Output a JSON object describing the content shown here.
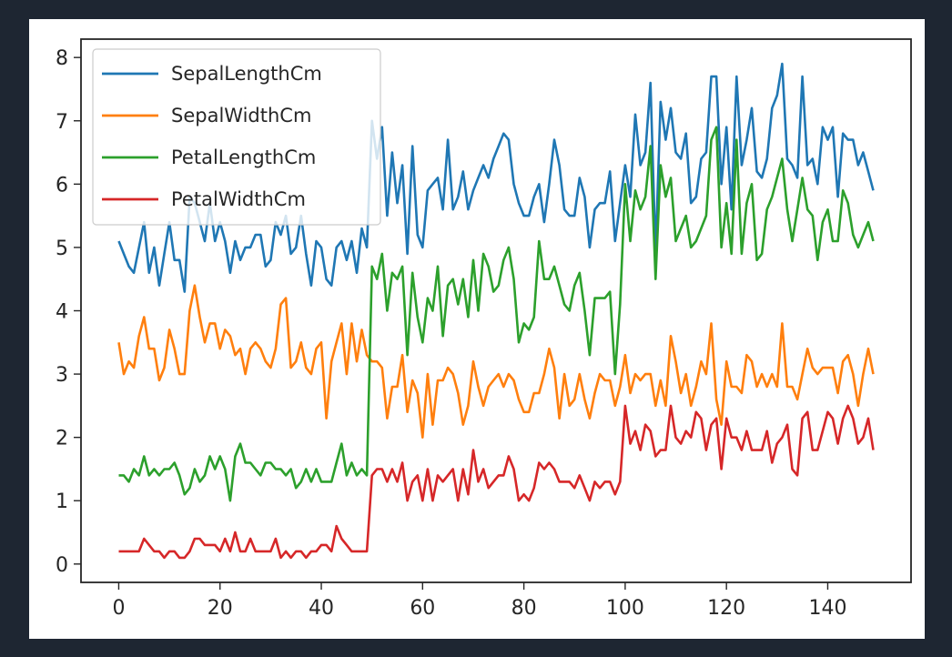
{
  "chart_data": {
    "type": "line",
    "x": [
      0,
      1,
      2,
      3,
      4,
      5,
      6,
      7,
      8,
      9,
      10,
      11,
      12,
      13,
      14,
      15,
      16,
      17,
      18,
      19,
      20,
      21,
      22,
      23,
      24,
      25,
      26,
      27,
      28,
      29,
      30,
      31,
      32,
      33,
      34,
      35,
      36,
      37,
      38,
      39,
      40,
      41,
      42,
      43,
      44,
      45,
      46,
      47,
      48,
      49,
      50,
      51,
      52,
      53,
      54,
      55,
      56,
      57,
      58,
      59,
      60,
      61,
      62,
      63,
      64,
      65,
      66,
      67,
      68,
      69,
      70,
      71,
      72,
      73,
      74,
      75,
      76,
      77,
      78,
      79,
      80,
      81,
      82,
      83,
      84,
      85,
      86,
      87,
      88,
      89,
      90,
      91,
      92,
      93,
      94,
      95,
      96,
      97,
      98,
      99,
      100,
      101,
      102,
      103,
      104,
      105,
      106,
      107,
      108,
      109,
      110,
      111,
      112,
      113,
      114,
      115,
      116,
      117,
      118,
      119,
      120,
      121,
      122,
      123,
      124,
      125,
      126,
      127,
      128,
      129,
      130,
      131,
      132,
      133,
      134,
      135,
      136,
      137,
      138,
      139,
      140,
      141,
      142,
      143,
      144,
      145,
      146,
      147,
      148,
      149
    ],
    "series": [
      {
        "name": "SepalLengthCm",
        "color": "#1f77b4",
        "values": [
          5.1,
          4.9,
          4.7,
          4.6,
          5.0,
          5.4,
          4.6,
          5.0,
          4.4,
          4.9,
          5.4,
          4.8,
          4.8,
          4.3,
          5.8,
          5.7,
          5.4,
          5.1,
          5.7,
          5.1,
          5.4,
          5.1,
          4.6,
          5.1,
          4.8,
          5.0,
          5.0,
          5.2,
          5.2,
          4.7,
          4.8,
          5.4,
          5.2,
          5.5,
          4.9,
          5.0,
          5.5,
          4.9,
          4.4,
          5.1,
          5.0,
          4.5,
          4.4,
          5.0,
          5.1,
          4.8,
          5.1,
          4.6,
          5.3,
          5.0,
          7.0,
          6.4,
          6.9,
          5.5,
          6.5,
          5.7,
          6.3,
          4.9,
          6.6,
          5.2,
          5.0,
          5.9,
          6.0,
          6.1,
          5.6,
          6.7,
          5.6,
          5.8,
          6.2,
          5.6,
          5.9,
          6.1,
          6.3,
          6.1,
          6.4,
          6.6,
          6.8,
          6.7,
          6.0,
          5.7,
          5.5,
          5.5,
          5.8,
          6.0,
          5.4,
          6.0,
          6.7,
          6.3,
          5.6,
          5.5,
          5.5,
          6.1,
          5.8,
          5.0,
          5.6,
          5.7,
          5.7,
          6.2,
          5.1,
          5.7,
          6.3,
          5.8,
          7.1,
          6.3,
          6.5,
          7.6,
          4.9,
          7.3,
          6.7,
          7.2,
          6.5,
          6.4,
          6.8,
          5.7,
          5.8,
          6.4,
          6.5,
          7.7,
          7.7,
          6.0,
          6.9,
          5.6,
          7.7,
          6.3,
          6.7,
          7.2,
          6.2,
          6.1,
          6.4,
          7.2,
          7.4,
          7.9,
          6.4,
          6.3,
          6.1,
          7.7,
          6.3,
          6.4,
          6.0,
          6.9,
          6.7,
          6.9,
          5.8,
          6.8,
          6.7,
          6.7,
          6.3,
          6.5,
          6.2,
          5.9
        ]
      },
      {
        "name": "SepalWidthCm",
        "color": "#ff7f0e",
        "values": [
          3.5,
          3.0,
          3.2,
          3.1,
          3.6,
          3.9,
          3.4,
          3.4,
          2.9,
          3.1,
          3.7,
          3.4,
          3.0,
          3.0,
          4.0,
          4.4,
          3.9,
          3.5,
          3.8,
          3.8,
          3.4,
          3.7,
          3.6,
          3.3,
          3.4,
          3.0,
          3.4,
          3.5,
          3.4,
          3.2,
          3.1,
          3.4,
          4.1,
          4.2,
          3.1,
          3.2,
          3.5,
          3.1,
          3.0,
          3.4,
          3.5,
          2.3,
          3.2,
          3.5,
          3.8,
          3.0,
          3.8,
          3.2,
          3.7,
          3.3,
          3.2,
          3.2,
          3.1,
          2.3,
          2.8,
          2.8,
          3.3,
          2.4,
          2.9,
          2.7,
          2.0,
          3.0,
          2.2,
          2.9,
          2.9,
          3.1,
          3.0,
          2.7,
          2.2,
          2.5,
          3.2,
          2.8,
          2.5,
          2.8,
          2.9,
          3.0,
          2.8,
          3.0,
          2.9,
          2.6,
          2.4,
          2.4,
          2.7,
          2.7,
          3.0,
          3.4,
          3.1,
          2.3,
          3.0,
          2.5,
          2.6,
          3.0,
          2.6,
          2.3,
          2.7,
          3.0,
          2.9,
          2.9,
          2.5,
          2.8,
          3.3,
          2.7,
          3.0,
          2.9,
          3.0,
          3.0,
          2.5,
          2.9,
          2.5,
          3.6,
          3.2,
          2.7,
          3.0,
          2.5,
          2.8,
          3.2,
          3.0,
          3.8,
          2.6,
          2.2,
          3.2,
          2.8,
          2.8,
          2.7,
          3.3,
          3.2,
          2.8,
          3.0,
          2.8,
          3.0,
          2.8,
          3.8,
          2.8,
          2.8,
          2.6,
          3.0,
          3.4,
          3.1,
          3.0,
          3.1,
          3.1,
          3.1,
          2.7,
          3.2,
          3.3,
          3.0,
          2.5,
          3.0,
          3.4,
          3.0
        ]
      },
      {
        "name": "PetalLengthCm",
        "color": "#2ca02c",
        "values": [
          1.4,
          1.4,
          1.3,
          1.5,
          1.4,
          1.7,
          1.4,
          1.5,
          1.4,
          1.5,
          1.5,
          1.6,
          1.4,
          1.1,
          1.2,
          1.5,
          1.3,
          1.4,
          1.7,
          1.5,
          1.7,
          1.5,
          1.0,
          1.7,
          1.9,
          1.6,
          1.6,
          1.5,
          1.4,
          1.6,
          1.6,
          1.5,
          1.5,
          1.4,
          1.5,
          1.2,
          1.3,
          1.5,
          1.3,
          1.5,
          1.3,
          1.3,
          1.3,
          1.6,
          1.9,
          1.4,
          1.6,
          1.4,
          1.5,
          1.4,
          4.7,
          4.5,
          4.9,
          4.0,
          4.6,
          4.5,
          4.7,
          3.3,
          4.6,
          3.9,
          3.5,
          4.2,
          4.0,
          4.7,
          3.6,
          4.4,
          4.5,
          4.1,
          4.5,
          3.9,
          4.8,
          4.0,
          4.9,
          4.7,
          4.3,
          4.4,
          4.8,
          5.0,
          4.5,
          3.5,
          3.8,
          3.7,
          3.9,
          5.1,
          4.5,
          4.5,
          4.7,
          4.4,
          4.1,
          4.0,
          4.4,
          4.6,
          4.0,
          3.3,
          4.2,
          4.2,
          4.2,
          4.3,
          3.0,
          4.1,
          6.0,
          5.1,
          5.9,
          5.6,
          5.8,
          6.6,
          4.5,
          6.3,
          5.8,
          6.1,
          5.1,
          5.3,
          5.5,
          5.0,
          5.1,
          5.3,
          5.5,
          6.7,
          6.9,
          5.0,
          5.7,
          4.9,
          6.7,
          4.9,
          5.7,
          6.0,
          4.8,
          4.9,
          5.6,
          5.8,
          6.1,
          6.4,
          5.6,
          5.1,
          5.6,
          6.1,
          5.6,
          5.5,
          4.8,
          5.4,
          5.6,
          5.1,
          5.1,
          5.9,
          5.7,
          5.2,
          5.0,
          5.2,
          5.4,
          5.1
        ]
      },
      {
        "name": "PetalWidthCm",
        "color": "#d62728",
        "values": [
          0.2,
          0.2,
          0.2,
          0.2,
          0.2,
          0.4,
          0.3,
          0.2,
          0.2,
          0.1,
          0.2,
          0.2,
          0.1,
          0.1,
          0.2,
          0.4,
          0.4,
          0.3,
          0.3,
          0.3,
          0.2,
          0.4,
          0.2,
          0.5,
          0.2,
          0.2,
          0.4,
          0.2,
          0.2,
          0.2,
          0.2,
          0.4,
          0.1,
          0.2,
          0.1,
          0.2,
          0.2,
          0.1,
          0.2,
          0.2,
          0.3,
          0.3,
          0.2,
          0.6,
          0.4,
          0.3,
          0.2,
          0.2,
          0.2,
          0.2,
          1.4,
          1.5,
          1.5,
          1.3,
          1.5,
          1.3,
          1.6,
          1.0,
          1.3,
          1.4,
          1.0,
          1.5,
          1.0,
          1.4,
          1.3,
          1.4,
          1.5,
          1.0,
          1.5,
          1.1,
          1.8,
          1.3,
          1.5,
          1.2,
          1.3,
          1.4,
          1.4,
          1.7,
          1.5,
          1.0,
          1.1,
          1.0,
          1.2,
          1.6,
          1.5,
          1.6,
          1.5,
          1.3,
          1.3,
          1.3,
          1.2,
          1.4,
          1.2,
          1.0,
          1.3,
          1.2,
          1.3,
          1.3,
          1.1,
          1.3,
          2.5,
          1.9,
          2.1,
          1.8,
          2.2,
          2.1,
          1.7,
          1.8,
          1.8,
          2.5,
          2.0,
          1.9,
          2.1,
          2.0,
          2.4,
          2.3,
          1.8,
          2.2,
          2.3,
          1.5,
          2.3,
          2.0,
          2.0,
          1.8,
          2.1,
          1.8,
          1.8,
          1.8,
          2.1,
          1.6,
          1.9,
          2.0,
          2.2,
          1.5,
          1.4,
          2.3,
          2.4,
          1.8,
          1.8,
          2.1,
          2.4,
          2.3,
          1.9,
          2.3,
          2.5,
          2.3,
          1.9,
          2.0,
          2.3,
          1.8
        ]
      }
    ],
    "xlim": [
      -7.45,
      156.45
    ],
    "ylim": [
      -0.29,
      8.29
    ],
    "xticks": [
      0,
      20,
      40,
      60,
      80,
      100,
      120,
      140
    ],
    "yticks": [
      0,
      1,
      2,
      3,
      4,
      5,
      6,
      7,
      8
    ],
    "title": "",
    "xlabel": "",
    "ylabel": "",
    "grid": false,
    "legend_position": "top-left"
  }
}
